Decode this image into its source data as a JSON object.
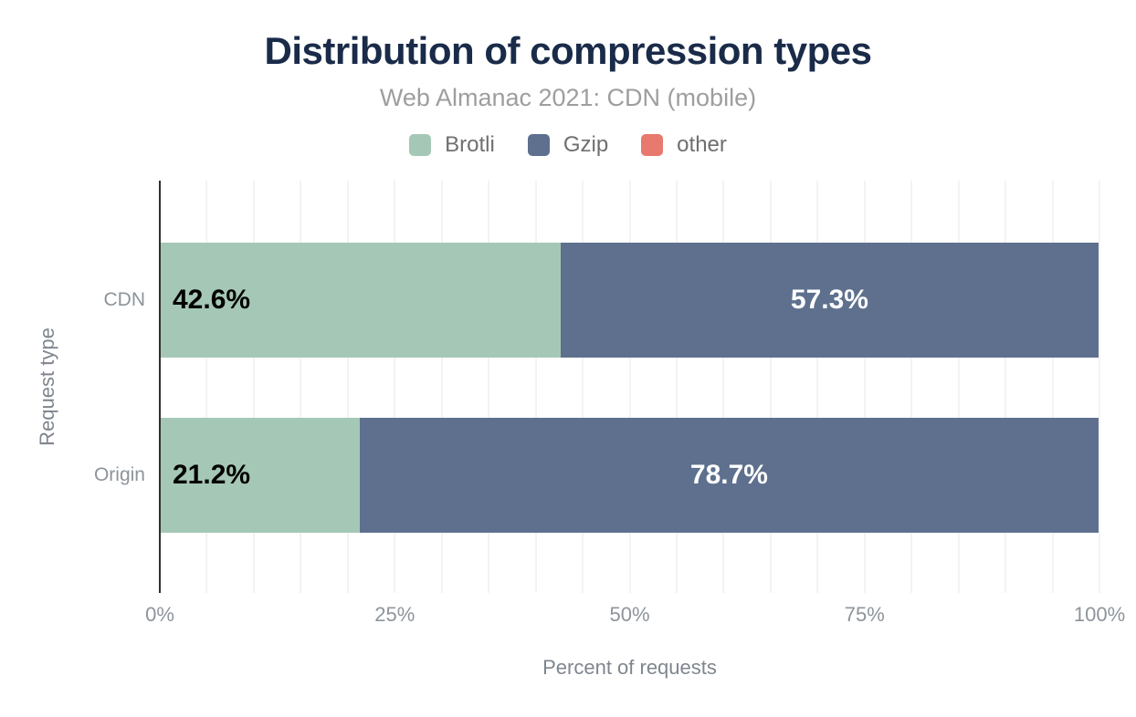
{
  "title": "Distribution of compression types",
  "subtitle": "Web Almanac 2021: CDN (mobile)",
  "colors": {
    "title": "#1a2b49",
    "subtitle": "#9e9e9e",
    "legend_text": "#6f6f6f",
    "axis_text": "#8d949b",
    "axis_title_text": "#7f868e",
    "axis_line": "#2f2f2f",
    "gridline": "#f3f3f3",
    "background": "#ffffff"
  },
  "legend": {
    "items": [
      {
        "label": "Brotli",
        "color": "#a5c8b6"
      },
      {
        "label": "Gzip",
        "color": "#5e708e"
      },
      {
        "label": "other",
        "color": "#e8796e"
      }
    ]
  },
  "chart_data": {
    "type": "bar",
    "orientation": "horizontal",
    "stacked": true,
    "title": "Distribution of compression types",
    "subtitle": "Web Almanac 2021: CDN (mobile)",
    "xlabel": "Percent of requests",
    "ylabel": "Request type",
    "xlim": [
      0,
      100
    ],
    "xticks": [
      {
        "pos": 0,
        "label": "0%"
      },
      {
        "pos": 25,
        "label": "25%"
      },
      {
        "pos": 50,
        "label": "50%"
      },
      {
        "pos": 75,
        "label": "75%"
      },
      {
        "pos": 100,
        "label": "100%"
      }
    ],
    "grid": {
      "vertical": true,
      "interval_percent": 5
    },
    "legend_position": "top",
    "categories": [
      "CDN",
      "Origin"
    ],
    "series": [
      {
        "name": "Brotli",
        "color": "#a5c8b6",
        "values": [
          42.6,
          21.2
        ],
        "data_labels": [
          "42.6%",
          "21.2%"
        ],
        "label_color": "#000000",
        "label_align": "left"
      },
      {
        "name": "Gzip",
        "color": "#5e708e",
        "values": [
          57.3,
          78.7
        ],
        "data_labels": [
          "57.3%",
          "78.7%"
        ],
        "label_color": "#ffffff",
        "label_align": "center"
      },
      {
        "name": "other",
        "color": "#e8796e",
        "values": [
          0.1,
          0.1
        ],
        "data_labels": [
          "",
          ""
        ],
        "label_color": "#000000",
        "label_align": "center"
      }
    ]
  }
}
